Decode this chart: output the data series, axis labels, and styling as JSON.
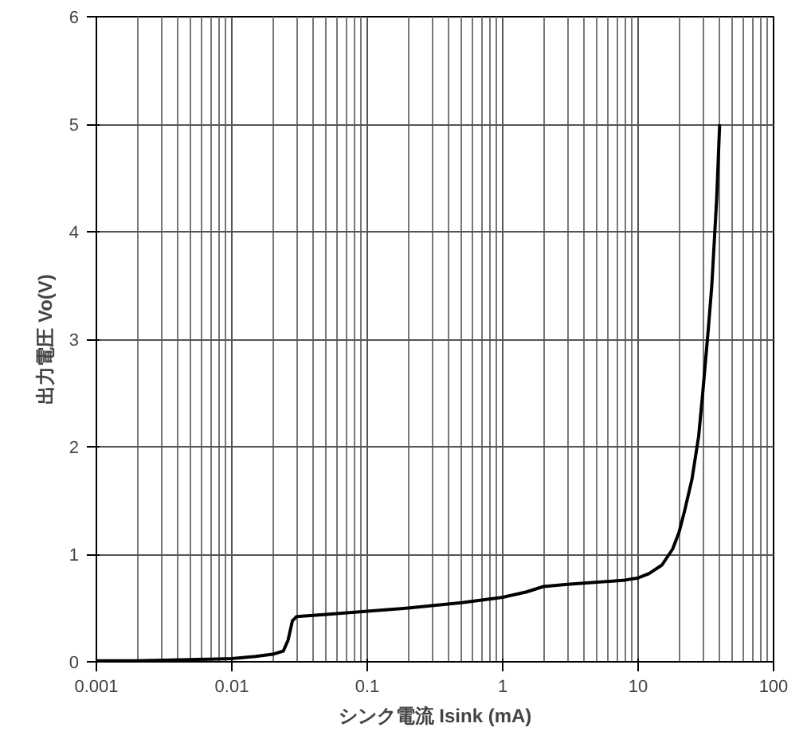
{
  "chart_data": {
    "type": "line",
    "xlabel": "シンク電流 Isink (mA)",
    "ylabel": "出力電圧 Vo(V)",
    "log": "x",
    "grid": true,
    "marker": "none",
    "line_style": "solid",
    "xlim": [
      0.001,
      100
    ],
    "xticks": [
      0.001,
      0.01,
      0.1,
      1,
      10,
      100
    ],
    "ylim": [
      0,
      6
    ],
    "yticks": [
      0,
      1,
      2,
      3,
      4,
      5,
      6
    ],
    "series": [
      {
        "color": "#000000",
        "x": [
          0.001,
          0.002,
          0.005,
          0.01,
          0.015,
          0.02,
          0.024,
          0.026,
          0.028,
          0.03,
          0.05,
          0.1,
          0.2,
          0.5,
          1,
          1.5,
          2,
          3,
          5,
          8,
          10,
          12,
          15,
          18,
          20,
          22,
          25,
          28,
          30,
          33,
          35,
          38,
          40
        ],
        "values": [
          0.01,
          0.01,
          0.02,
          0.03,
          0.05,
          0.07,
          0.1,
          0.2,
          0.38,
          0.42,
          0.44,
          0.47,
          0.5,
          0.55,
          0.6,
          0.65,
          0.7,
          0.72,
          0.74,
          0.76,
          0.78,
          0.82,
          0.9,
          1.05,
          1.2,
          1.4,
          1.7,
          2.1,
          2.5,
          3.1,
          3.5,
          4.3,
          5.0
        ]
      }
    ]
  }
}
